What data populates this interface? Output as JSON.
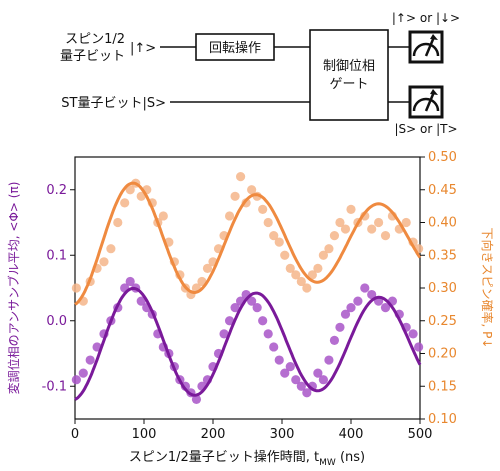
{
  "circuit": {
    "qubit1_label_line1": "スピン1/2",
    "qubit1_label_line2": "量子ビット",
    "qubit1_ket": "|↑>",
    "qubit2_label": "ST量子ビット|S>",
    "rotation_gate": "回転操作",
    "controlled_gate_line1": "制御位相",
    "controlled_gate_line2": "ゲート",
    "meter1_label": "|↑> or |↓>",
    "meter2_label": "|S> or |T>"
  },
  "chart_data": {
    "type": "scatter",
    "xlabel": "スピン1/2量子ビット操作時間, t",
    "xlabel_subscript": "MW",
    "xlabel_unit": " (ns)",
    "ylabel_left": "変調位相のアンサンブル平均, <Φ> (π)",
    "ylabel_right": "下向きスピン確率, P↓",
    "xlim": [
      0,
      500
    ],
    "ylim_left": [
      -0.15,
      0.25
    ],
    "ylim_right": [
      0.1,
      0.5
    ],
    "x_ticks": [
      "0",
      "100",
      "200",
      "300",
      "400",
      "500"
    ],
    "y_left_ticks": [
      "0.2",
      "0.1",
      "0.0",
      "-0.1"
    ],
    "y_right_ticks": [
      "0.50",
      "0.45",
      "0.40",
      "0.35",
      "0.30",
      "0.25",
      "0.20",
      "0.15",
      "0.10"
    ],
    "colors": {
      "orange_points": "#f5b58a",
      "orange_fit": "#ef8a40",
      "purple_points": "#a855c8",
      "purple_fit": "#7a1a9a",
      "left_axis": "#7a1a9a",
      "right_axis": "#e8872e"
    },
    "series": [
      {
        "axis": "right",
        "kind": "points",
        "x": [
          2,
          12,
          22,
          32,
          42,
          52,
          62,
          72,
          80,
          88,
          96,
          104,
          112,
          120,
          128,
          136,
          144,
          152,
          160,
          168,
          176,
          184,
          192,
          200,
          208,
          216,
          224,
          232,
          240,
          248,
          256,
          264,
          272,
          280,
          288,
          296,
          304,
          312,
          320,
          328,
          336,
          344,
          352,
          360,
          368,
          376,
          384,
          392,
          400,
          410,
          420,
          430,
          440,
          450,
          460,
          470,
          480,
          490,
          498
        ],
        "y": [
          0.3,
          0.28,
          0.31,
          0.33,
          0.34,
          0.36,
          0.4,
          0.43,
          0.45,
          0.46,
          0.44,
          0.45,
          0.43,
          0.4,
          0.41,
          0.37,
          0.34,
          0.32,
          0.3,
          0.29,
          0.3,
          0.31,
          0.33,
          0.34,
          0.36,
          0.38,
          0.41,
          0.44,
          0.47,
          0.43,
          0.45,
          0.44,
          0.42,
          0.4,
          0.38,
          0.37,
          0.35,
          0.33,
          0.32,
          0.31,
          0.3,
          0.32,
          0.33,
          0.35,
          0.36,
          0.38,
          0.4,
          0.39,
          0.42,
          0.4,
          0.41,
          0.39,
          0.4,
          0.38,
          0.41,
          0.39,
          0.4,
          0.37,
          0.36
        ]
      },
      {
        "axis": "right",
        "kind": "fit",
        "model": {
          "offset": 0.372,
          "amp_start": 0.098,
          "decay_ns": 800,
          "period_ns": 178,
          "phase_deg": 188
        }
      },
      {
        "axis": "left",
        "kind": "points",
        "x": [
          2,
          12,
          22,
          32,
          42,
          52,
          62,
          72,
          80,
          88,
          96,
          104,
          112,
          120,
          128,
          136,
          144,
          152,
          160,
          168,
          176,
          184,
          192,
          200,
          208,
          216,
          224,
          232,
          240,
          248,
          256,
          264,
          272,
          280,
          288,
          296,
          304,
          312,
          320,
          328,
          336,
          344,
          352,
          360,
          368,
          376,
          384,
          392,
          400,
          410,
          420,
          430,
          440,
          450,
          460,
          470,
          480,
          490,
          498
        ],
        "y": [
          -0.09,
          -0.08,
          -0.06,
          -0.04,
          -0.02,
          0.0,
          0.02,
          0.05,
          0.06,
          0.05,
          0.03,
          0.02,
          0.01,
          -0.02,
          -0.04,
          -0.05,
          -0.07,
          -0.09,
          -0.1,
          -0.11,
          -0.12,
          -0.1,
          -0.09,
          -0.07,
          -0.05,
          -0.02,
          0.0,
          0.02,
          0.03,
          0.04,
          0.03,
          0.02,
          0.0,
          -0.02,
          -0.04,
          -0.06,
          -0.08,
          -0.07,
          -0.09,
          -0.1,
          -0.11,
          -0.1,
          -0.08,
          -0.09,
          -0.06,
          -0.03,
          -0.01,
          0.01,
          0.02,
          0.03,
          0.05,
          0.04,
          0.03,
          0.02,
          0.03,
          0.01,
          -0.01,
          -0.02,
          -0.04
        ]
      },
      {
        "axis": "left",
        "kind": "fit",
        "model": {
          "offset": -0.034,
          "amp_start": 0.087,
          "decay_ns": 2000,
          "period_ns": 178,
          "phase_deg": 188
        }
      }
    ]
  }
}
